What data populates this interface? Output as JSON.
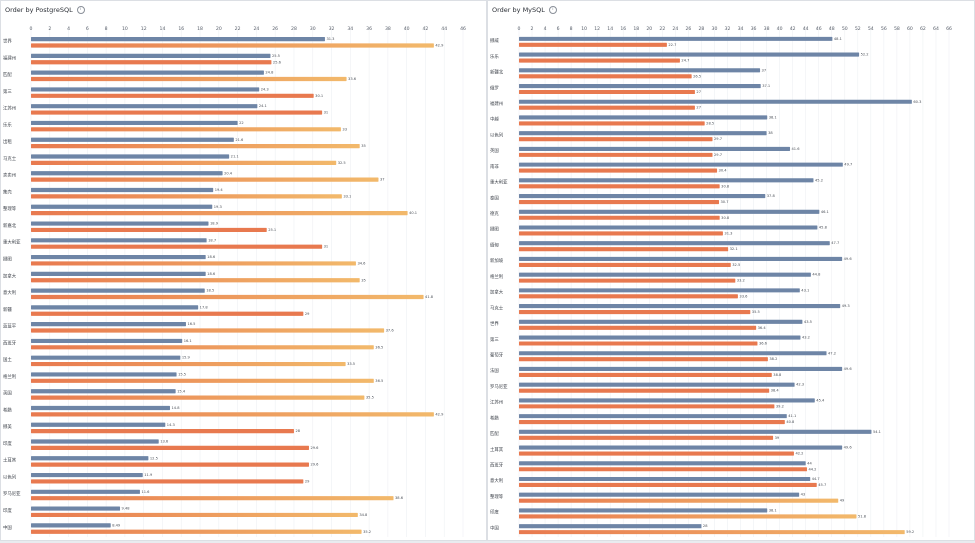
{
  "colors": {
    "primary": "#6e85a6",
    "compare": "#e8794f",
    "compare_light": "#f2b96b"
  },
  "panels": [
    {
      "title": "Order by PostgreSQL",
      "info_icon": "info-icon"
    },
    {
      "title": "Order by MySQL",
      "info_icon": "info-icon"
    }
  ],
  "chart_data": [
    {
      "type": "bar",
      "orientation": "horizontal",
      "title": "Order by PostgreSQL",
      "xlim": [
        0,
        46
      ],
      "xticks": [
        0,
        2,
        4,
        6,
        8,
        10,
        12,
        14,
        16,
        18,
        20,
        22,
        24,
        26,
        28,
        30,
        32,
        34,
        36,
        38,
        40,
        42,
        44,
        46
      ],
      "categories": [
        "世界",
        "福建州",
        "匹配",
        "第三",
        "江苏州",
        "乐乐",
        "出租",
        "马克士",
        "卖卖州",
        "集壳",
        "整理等",
        "新嘉北",
        "重大利亚",
        "挪图",
        "加拿大",
        "意大利",
        "新疆",
        "蓝蓝平",
        "西班牙",
        "国土",
        "格兰利",
        "英国",
        "希腊",
        "挪美",
        "印度",
        "土耳其",
        "以色列",
        "罗马尼亚",
        "印度",
        "中国"
      ],
      "series": [
        {
          "values": [
            31.3,
            25.5,
            24.8,
            24.3,
            24.1,
            22.0,
            21.6,
            21.1,
            20.4,
            19.4,
            19.3,
            18.9,
            18.7,
            18.6,
            18.6,
            18.5,
            17.8,
            16.5,
            16.1,
            15.9,
            15.5,
            15.4,
            14.8,
            14.3,
            13.6,
            12.5,
            11.9,
            11.6,
            9.48,
            8.49
          ]
        },
        {
          "values": [
            42.9,
            25.6,
            33.6,
            30.1,
            31.0,
            33.0,
            35.0,
            32.5,
            37.0,
            33.1,
            40.1,
            25.1,
            31.0,
            34.6,
            35.0,
            41.8,
            29.0,
            37.6,
            36.5,
            33.5,
            36.5,
            35.5,
            42.9,
            28.0,
            29.6,
            29.6,
            29.0,
            38.6,
            34.8,
            35.2
          ]
        }
      ]
    },
    {
      "type": "bar",
      "orientation": "horizontal",
      "title": "Order by MySQL",
      "xlim": [
        0,
        66
      ],
      "xticks": [
        0,
        2,
        4,
        6,
        8,
        10,
        12,
        14,
        16,
        18,
        20,
        22,
        24,
        26,
        28,
        30,
        32,
        34,
        36,
        38,
        40,
        42,
        44,
        46,
        48,
        50,
        52,
        54,
        56,
        58,
        60,
        62,
        64,
        66
      ],
      "categories": [
        "挪威",
        "乐乐",
        "新疆北",
        "俄罗",
        "福建州",
        "中越",
        "以色列",
        "英国",
        "南非",
        "重大利亚",
        "泰国",
        "德克",
        "挪图",
        "缅甸",
        "新加坡",
        "格兰利",
        "加拿大",
        "马克士",
        "世界",
        "第三",
        "葡萄牙",
        "法国",
        "罗马尼亚",
        "江苏州",
        "希腊",
        "匹配",
        "土耳其",
        "西班牙",
        "意大利",
        "整理等",
        "印度",
        "中国"
      ],
      "series": [
        {
          "values": [
            48.1,
            52.2,
            37.0,
            37.1,
            60.3,
            38.1,
            38.0,
            41.6,
            49.7,
            45.2,
            37.8,
            46.1,
            45.8,
            47.7,
            49.6,
            44.8,
            43.1,
            49.3,
            43.5,
            43.2,
            47.2,
            49.6,
            42.3,
            45.4,
            41.1,
            54.1,
            49.6,
            44.0,
            44.7,
            43.0,
            38.1,
            28.0
          ]
        },
        {
          "values": [
            22.7,
            24.7,
            26.5,
            27.0,
            27.0,
            28.5,
            29.7,
            29.7,
            30.4,
            30.8,
            30.7,
            30.8,
            31.3,
            32.1,
            32.5,
            33.2,
            33.6,
            35.5,
            36.4,
            36.6,
            38.2,
            38.8,
            38.4,
            39.2,
            40.8,
            39.0,
            42.2,
            44.2,
            45.7,
            49.0,
            51.8,
            59.2
          ]
        }
      ]
    }
  ]
}
